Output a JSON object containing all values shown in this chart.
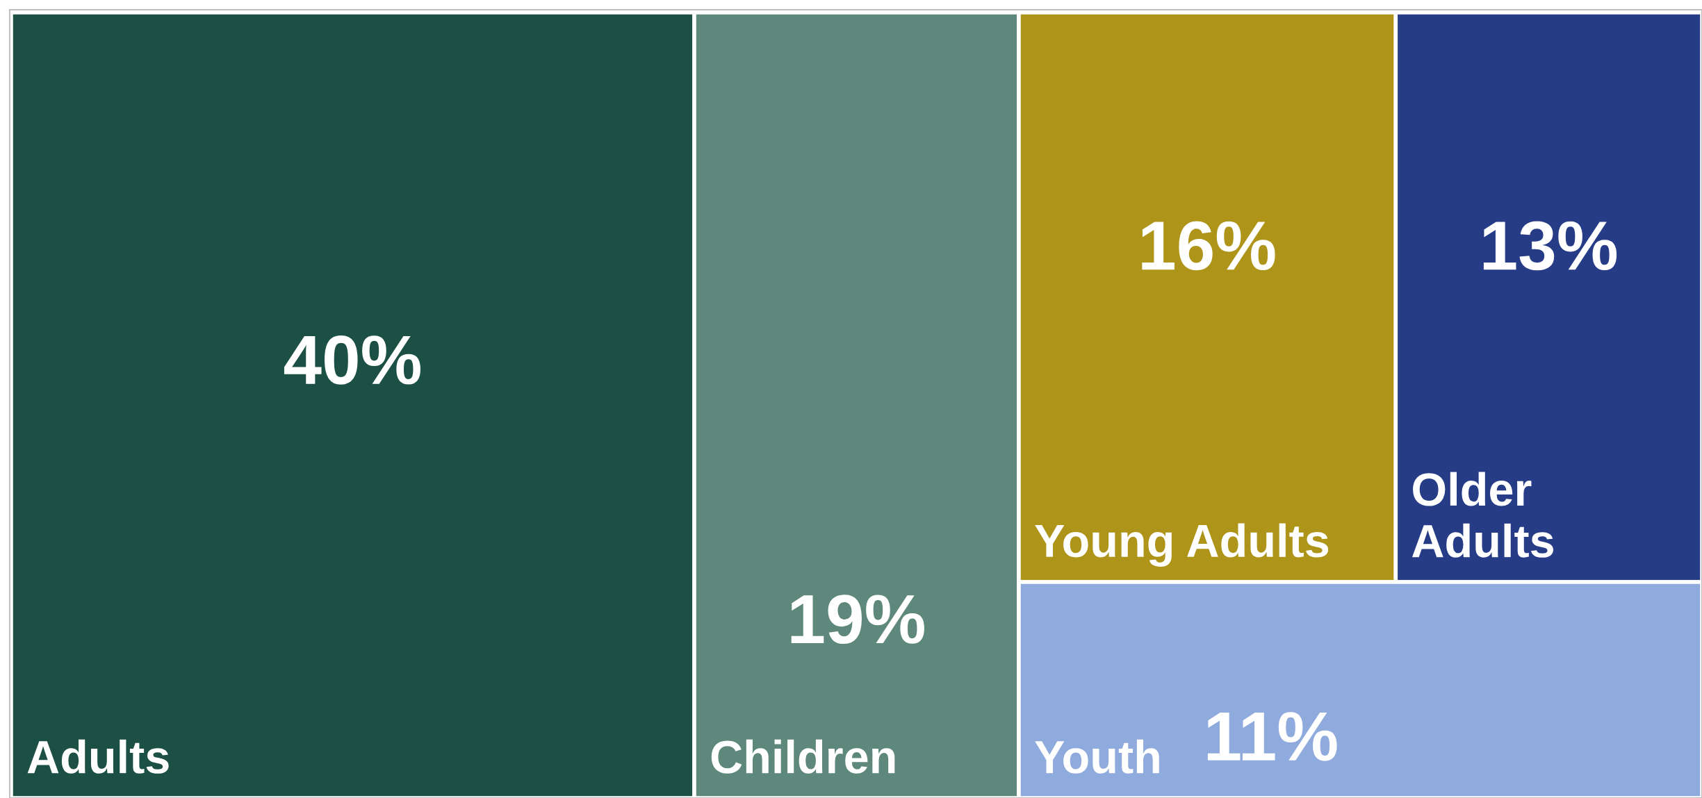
{
  "chart_data": {
    "type": "other",
    "categories": [
      "Adults",
      "Children",
      "Young Adults",
      "Older Adults",
      "Youth"
    ],
    "values": [
      40,
      19,
      16,
      13,
      11
    ],
    "value_labels": [
      "40%",
      "19%",
      "16%",
      "13%",
      "11%"
    ],
    "colors": [
      "#1c5044",
      "#5f887c",
      "#ae9419",
      "#263c86",
      "#8faadc"
    ]
  }
}
